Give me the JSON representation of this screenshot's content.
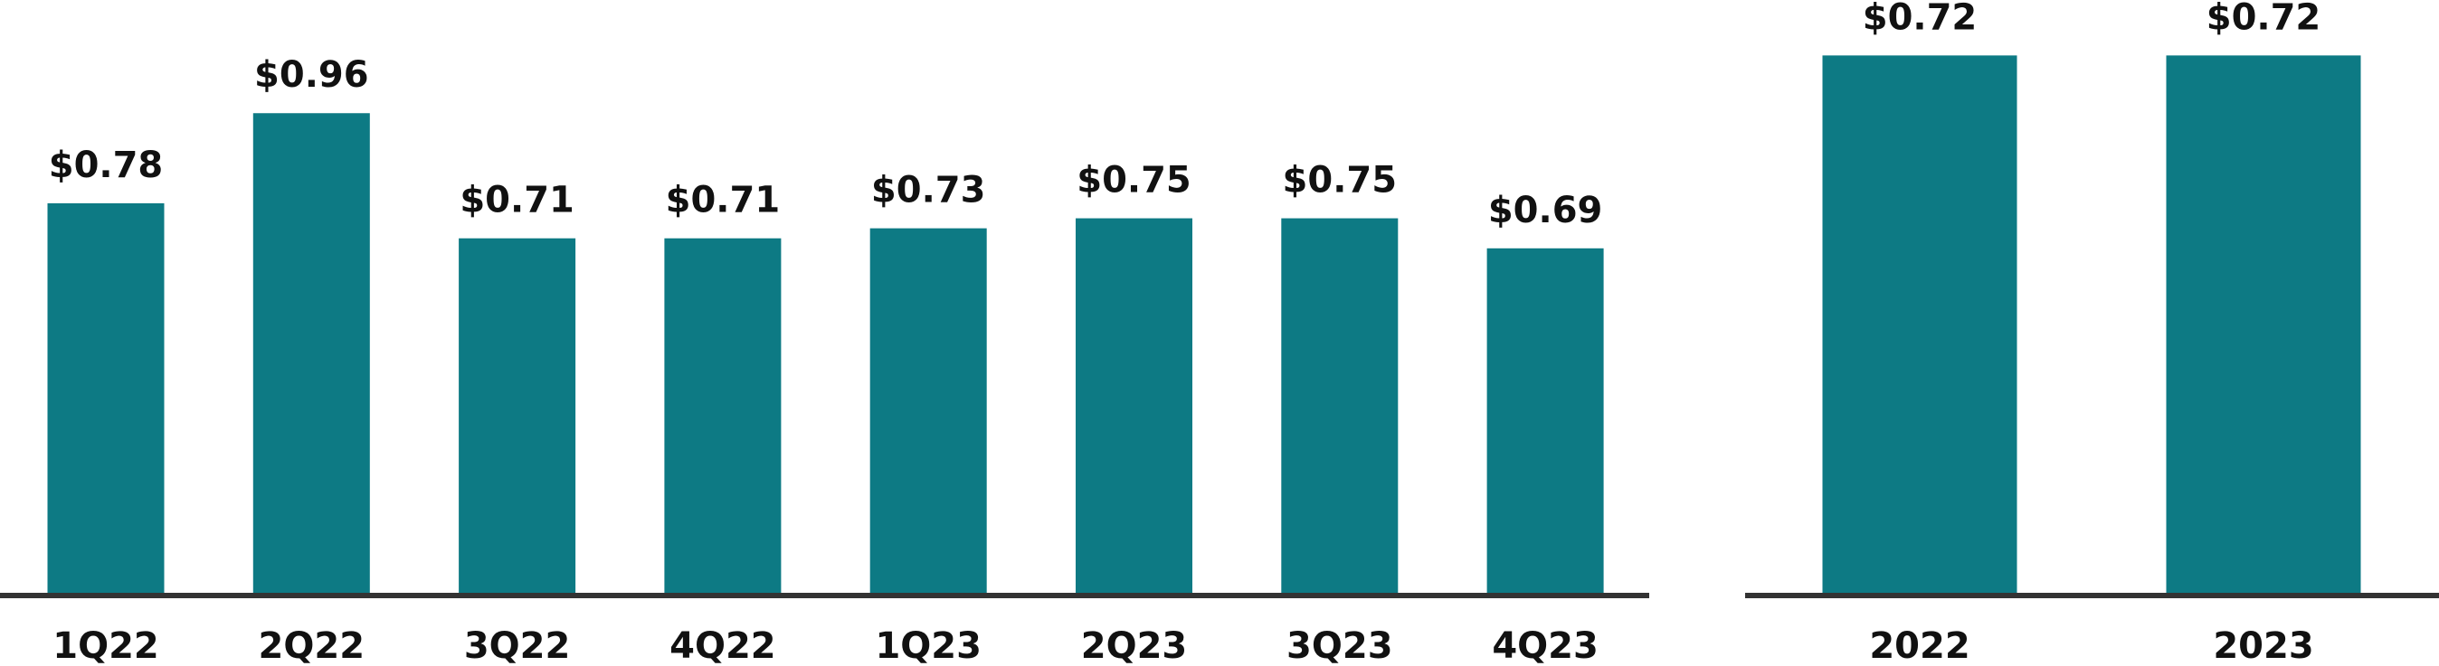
{
  "chart_data": [
    {
      "type": "bar",
      "categories": [
        "1Q22",
        "2Q22",
        "3Q22",
        "4Q22",
        "1Q23",
        "2Q23",
        "3Q23",
        "4Q23"
      ],
      "values": [
        0.78,
        0.96,
        0.71,
        0.71,
        0.73,
        0.75,
        0.75,
        0.69
      ],
      "value_labels": [
        "$0.78",
        "$0.96",
        "$0.71",
        "$0.71",
        "$0.73",
        "$0.75",
        "$0.75",
        "$0.69"
      ],
      "color": "#0d7a84",
      "ylim": [
        0,
        1.15
      ]
    },
    {
      "type": "bar",
      "categories": [
        "2022",
        "2023"
      ],
      "values": [
        0.72,
        0.72
      ],
      "value_labels": [
        "$0.72",
        "$0.72"
      ],
      "color": "#0d7a84",
      "ylim": [
        0,
        0.77
      ]
    }
  ]
}
